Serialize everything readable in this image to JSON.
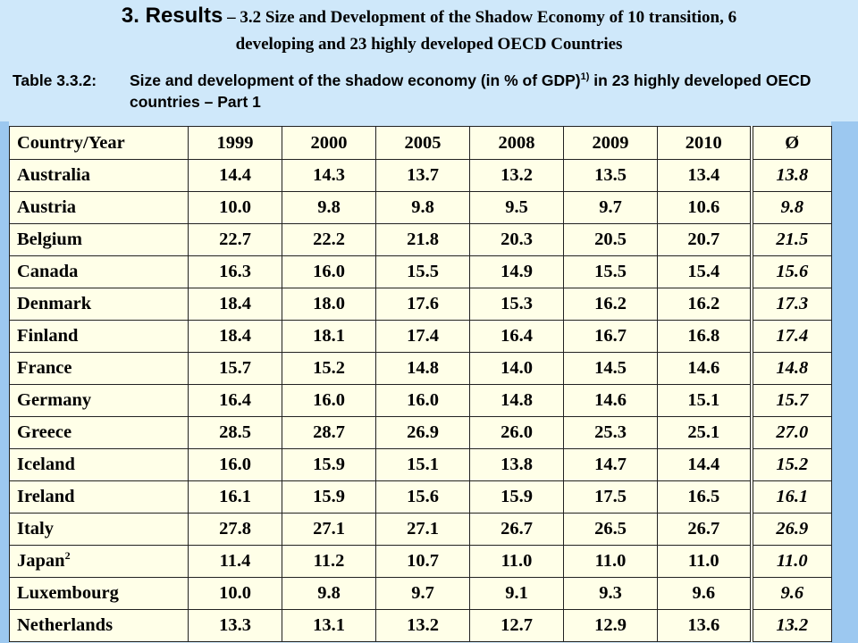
{
  "title": {
    "prefix": "3. Results",
    "dash": " – ",
    "line1_rest": "3.2 Size and Development of the Shadow Economy of 10 transition, 6",
    "line2": "developing and 23 highly developed OECD Countries"
  },
  "caption": {
    "label": "Table 3.3.2:",
    "text_before_sup": "Size and development of the shadow economy (in % of GDP)",
    "sup": "1)",
    "text_after_sup": " in 23 highly developed OECD countries – Part 1"
  },
  "table": {
    "headers": [
      "Country/Year",
      "1999",
      "2000",
      "2005",
      "2008",
      "2009",
      "2010",
      "Ø"
    ],
    "rows": [
      {
        "country": "Australia",
        "note": "",
        "values": [
          "14.4",
          "14.3",
          "13.7",
          "13.2",
          "13.5",
          "13.4"
        ],
        "avg": "13.8"
      },
      {
        "country": "Austria",
        "note": "",
        "values": [
          "10.0",
          "9.8",
          "9.8",
          "9.5",
          "9.7",
          "10.6"
        ],
        "avg": "9.8"
      },
      {
        "country": "Belgium",
        "note": "",
        "values": [
          "22.7",
          "22.2",
          "21.8",
          "20.3",
          "20.5",
          "20.7"
        ],
        "avg": "21.5"
      },
      {
        "country": "Canada",
        "note": "",
        "values": [
          "16.3",
          "16.0",
          "15.5",
          "14.9",
          "15.5",
          "15.4"
        ],
        "avg": "15.6"
      },
      {
        "country": "Denmark",
        "note": "",
        "values": [
          "18.4",
          "18.0",
          "17.6",
          "15.3",
          "16.2",
          "16.2"
        ],
        "avg": "17.3"
      },
      {
        "country": "Finland",
        "note": "",
        "values": [
          "18.4",
          "18.1",
          "17.4",
          "16.4",
          "16.7",
          "16.8"
        ],
        "avg": "17.4"
      },
      {
        "country": "France",
        "note": "",
        "values": [
          "15.7",
          "15.2",
          "14.8",
          "14.0",
          "14.5",
          "14.6"
        ],
        "avg": "14.8"
      },
      {
        "country": "Germany",
        "note": "",
        "values": [
          "16.4",
          "16.0",
          "16.0",
          "14.8",
          "14.6",
          "15.1"
        ],
        "avg": "15.7"
      },
      {
        "country": "Greece",
        "note": "",
        "values": [
          "28.5",
          "28.7",
          "26.9",
          "26.0",
          "25.3",
          "25.1"
        ],
        "avg": "27.0"
      },
      {
        "country": "Iceland",
        "note": "",
        "values": [
          "16.0",
          "15.9",
          "15.1",
          "13.8",
          "14.7",
          "14.4"
        ],
        "avg": "15.2"
      },
      {
        "country": "Ireland",
        "note": "",
        "values": [
          "16.1",
          "15.9",
          "15.6",
          "15.9",
          "17.5",
          "16.5"
        ],
        "avg": "16.1"
      },
      {
        "country": "Italy",
        "note": "",
        "values": [
          "27.8",
          "27.1",
          "27.1",
          "26.7",
          "26.5",
          "26.7"
        ],
        "avg": "26.9"
      },
      {
        "country": "Japan",
        "note": "2",
        "values": [
          "11.4",
          "11.2",
          "10.7",
          "11.0",
          "11.0",
          "11.0"
        ],
        "avg": "11.0"
      },
      {
        "country": "Luxembourg",
        "note": "",
        "values": [
          "10.0",
          "9.8",
          "9.7",
          "9.1",
          "9.3",
          "9.6"
        ],
        "avg": "9.6"
      },
      {
        "country": "Netherlands",
        "note": "",
        "values": [
          "13.3",
          "13.1",
          "13.2",
          "12.7",
          "12.9",
          "13.6"
        ],
        "avg": "13.2"
      }
    ]
  },
  "colors": {
    "header_background": "#cfe8fa",
    "side_band": "#9cc8f0",
    "table_background": "#ffffe8"
  }
}
